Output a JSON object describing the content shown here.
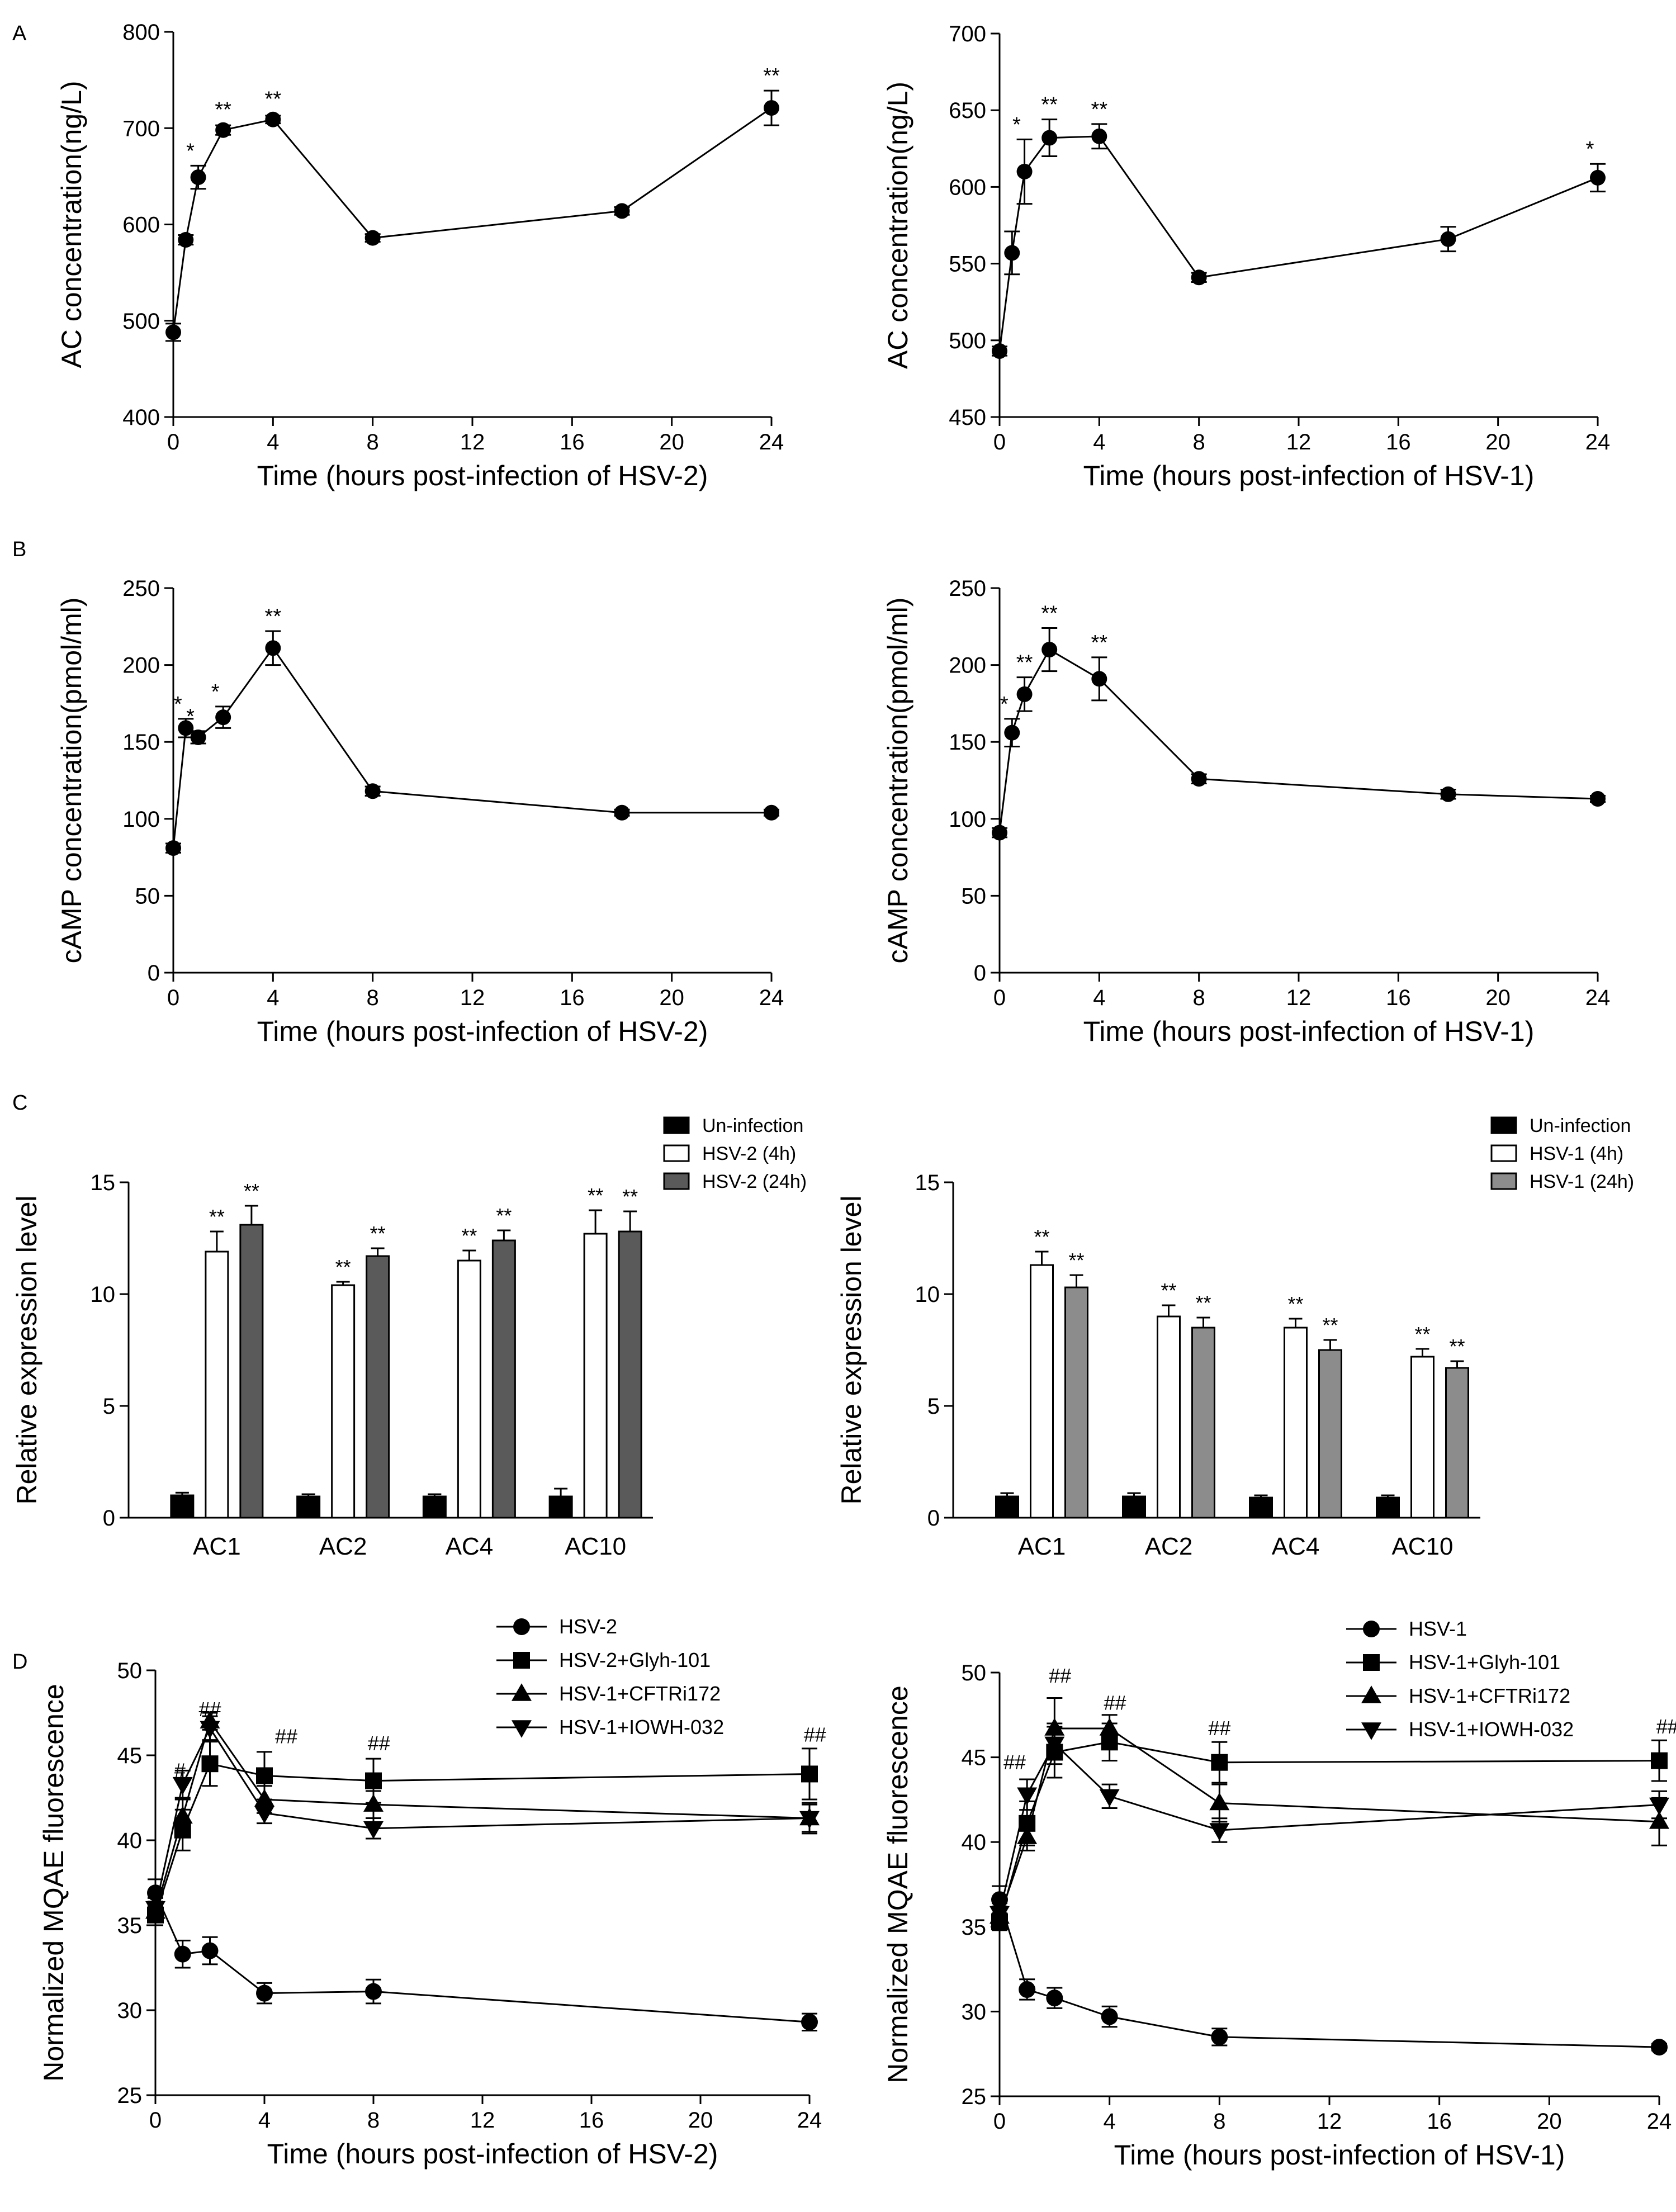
{
  "panel_letters": [
    "A",
    "B",
    "C",
    "D"
  ],
  "chart_data": [
    {
      "id": "A-left",
      "type": "line",
      "panel": "A",
      "xlabel": "Time (hours post-infection of HSV-2)",
      "ylabel": "AC concentration(ng/L)",
      "xlim": [
        0,
        24
      ],
      "xticks": [
        0,
        4,
        8,
        12,
        16,
        20,
        24
      ],
      "ylim": [
        400,
        800
      ],
      "yticks": [
        400,
        500,
        600,
        700,
        800
      ],
      "series": [
        {
          "name": "HSV-2",
          "marker": "circle",
          "x": [
            0,
            0.5,
            1,
            2,
            4,
            8,
            18,
            24
          ],
          "y": [
            488,
            584,
            649,
            698,
            709,
            586,
            614,
            721
          ],
          "err": [
            9,
            5,
            12,
            5,
            4,
            4,
            4,
            18
          ],
          "sig": [
            "",
            "",
            "*",
            "**",
            "**",
            "",
            "",
            "**"
          ]
        }
      ]
    },
    {
      "id": "A-right",
      "type": "line",
      "panel": "A",
      "xlabel": "Time (hours post-infection of HSV-1)",
      "ylabel": "AC concentration(ng/L)",
      "xlim": [
        0,
        24
      ],
      "xticks": [
        0,
        4,
        8,
        12,
        16,
        20,
        24
      ],
      "ylim": [
        450,
        700
      ],
      "yticks": [
        450,
        500,
        550,
        600,
        650,
        700
      ],
      "series": [
        {
          "name": "HSV-1",
          "marker": "circle",
          "x": [
            0,
            0.5,
            1,
            2,
            4,
            8,
            18,
            24
          ],
          "y": [
            493,
            557,
            610,
            632,
            633,
            541,
            566,
            606
          ],
          "err": [
            3,
            14,
            21,
            12,
            8,
            3,
            8,
            9
          ],
          "sig": [
            "",
            "",
            "*",
            "**",
            "**",
            "",
            "",
            "*"
          ]
        }
      ]
    },
    {
      "id": "B-left",
      "type": "line",
      "panel": "B",
      "xlabel": "Time (hours post-infection of HSV-2)",
      "ylabel": "cAMP concentration(pmol/ml)",
      "xlim": [
        0,
        24
      ],
      "xticks": [
        0,
        4,
        8,
        12,
        16,
        20,
        24
      ],
      "ylim": [
        0,
        250
      ],
      "yticks": [
        0,
        50,
        100,
        150,
        200,
        250
      ],
      "series": [
        {
          "name": "HSV-2",
          "marker": "circle",
          "x": [
            0,
            0.5,
            1,
            2,
            4,
            8,
            18,
            24
          ],
          "y": [
            81,
            159,
            153,
            166,
            211,
            118,
            104,
            104
          ],
          "err": [
            3,
            6,
            4,
            7,
            11,
            3,
            2,
            2
          ],
          "sig": [
            "",
            "*",
            "*",
            "*",
            "**",
            "",
            "",
            ""
          ]
        }
      ]
    },
    {
      "id": "B-right",
      "type": "line",
      "panel": "B",
      "xlabel": "Time (hours post-infection of HSV-1)",
      "ylabel": "cAMP concentration(pmol/ml)",
      "xlim": [
        0,
        24
      ],
      "xticks": [
        0,
        4,
        8,
        12,
        16,
        20,
        24
      ],
      "ylim": [
        0,
        250
      ],
      "yticks": [
        0,
        50,
        100,
        150,
        200,
        250
      ],
      "series": [
        {
          "name": "HSV-1",
          "marker": "circle",
          "x": [
            0,
            0.5,
            1,
            2,
            4,
            8,
            18,
            24
          ],
          "y": [
            91,
            156,
            181,
            210,
            191,
            126,
            116,
            113
          ],
          "err": [
            3,
            9,
            11,
            14,
            14,
            3,
            3,
            2
          ],
          "sig": [
            "",
            "*",
            "**",
            "**",
            "**",
            "",
            "",
            ""
          ]
        }
      ]
    },
    {
      "id": "C-left",
      "type": "bar",
      "panel": "C",
      "ylabel": "Relative expression level",
      "categories": [
        "AC1",
        "AC2",
        "AC4",
        "AC10"
      ],
      "ylim": [
        0,
        15
      ],
      "yticks": [
        0,
        5,
        10,
        15
      ],
      "series": [
        {
          "name": "Un-infection",
          "color": "#000000",
          "values": [
            1.0,
            0.95,
            0.95,
            0.95
          ],
          "err": [
            0.12,
            0.1,
            0.1,
            0.35
          ],
          "sig": [
            "",
            "",
            "",
            ""
          ]
        },
        {
          "name": "HSV-2 (4h)",
          "color": "#ffffff",
          "values": [
            11.9,
            10.4,
            11.5,
            12.7
          ],
          "err": [
            0.9,
            0.15,
            0.45,
            1.05
          ],
          "sig": [
            "**",
            "**",
            "**",
            "**"
          ]
        },
        {
          "name": "HSV-2 (24h)",
          "color": "#5a5a5a",
          "values": [
            13.1,
            11.7,
            12.4,
            12.8
          ],
          "err": [
            0.85,
            0.35,
            0.45,
            0.9
          ],
          "sig": [
            "**",
            "**",
            "**",
            "**"
          ]
        }
      ],
      "legend": "top-right"
    },
    {
      "id": "C-right",
      "type": "bar",
      "panel": "C",
      "ylabel": "Relative expression level",
      "categories": [
        "AC1",
        "AC2",
        "AC4",
        "AC10"
      ],
      "ylim": [
        0,
        15
      ],
      "yticks": [
        0,
        5,
        10,
        15
      ],
      "series": [
        {
          "name": "Un-infection",
          "color": "#000000",
          "values": [
            0.95,
            0.95,
            0.9,
            0.9
          ],
          "err": [
            0.15,
            0.15,
            0.1,
            0.1
          ],
          "sig": [
            "",
            "",
            "",
            ""
          ]
        },
        {
          "name": "HSV-1 (4h)",
          "color": "#ffffff",
          "values": [
            11.3,
            9.0,
            8.5,
            7.2
          ],
          "err": [
            0.6,
            0.5,
            0.4,
            0.35
          ],
          "sig": [
            "**",
            "**",
            "**",
            "**"
          ]
        },
        {
          "name": "HSV-1 (24h)",
          "color": "#8c8c8c",
          "values": [
            10.3,
            8.5,
            7.5,
            6.7
          ],
          "err": [
            0.55,
            0.45,
            0.45,
            0.3
          ],
          "sig": [
            "**",
            "**",
            "**",
            "**"
          ]
        }
      ],
      "legend": "top-right"
    },
    {
      "id": "D-left",
      "type": "line",
      "panel": "D",
      "xlabel": "Time (hours post-infection of HSV-2)",
      "ylabel": "Normalized MQAE fluorescence",
      "xlim": [
        0,
        24
      ],
      "xticks": [
        0,
        4,
        8,
        12,
        16,
        20,
        24
      ],
      "ylim": [
        25,
        50
      ],
      "yticks": [
        25,
        30,
        35,
        40,
        45,
        50
      ],
      "annotations": [
        {
          "x": 0.9,
          "y": 43.7,
          "text": "#"
        },
        {
          "x": 2.0,
          "y": 47.3,
          "text": "##"
        },
        {
          "x": 4.8,
          "y": 45.7,
          "text": "##"
        },
        {
          "x": 8.2,
          "y": 45.3,
          "text": "##"
        },
        {
          "x": 24.2,
          "y": 45.8,
          "text": "##"
        }
      ],
      "series": [
        {
          "name": "HSV-2",
          "marker": "circle",
          "x": [
            0,
            1,
            2,
            4,
            8,
            24
          ],
          "y": [
            36.9,
            33.3,
            33.5,
            31.0,
            31.1,
            29.3
          ],
          "err": [
            0.8,
            0.8,
            0.8,
            0.6,
            0.7,
            0.5
          ]
        },
        {
          "name": "HSV-2+Glyh-101",
          "marker": "square",
          "x": [
            0,
            1,
            2,
            4,
            8,
            24
          ],
          "y": [
            35.6,
            40.6,
            44.5,
            43.8,
            43.5,
            43.9
          ],
          "err": [
            0.6,
            1.2,
            1.3,
            1.4,
            1.3,
            1.5
          ]
        },
        {
          "name": "HSV-1+CFTRi172",
          "marker": "triangle",
          "x": [
            0,
            1,
            2,
            4,
            8,
            24
          ],
          "y": [
            35.8,
            41.4,
            47.0,
            42.4,
            42.1,
            41.3
          ],
          "err": [
            0.6,
            1.0,
            0.5,
            0.8,
            0.8,
            0.8
          ]
        },
        {
          "name": "HSV-1+IOWH-032",
          "marker": "triangle-down",
          "x": [
            0,
            1,
            2,
            4,
            8,
            24
          ],
          "y": [
            36.0,
            43.3,
            46.6,
            41.6,
            40.7,
            41.3
          ],
          "err": [
            0.6,
            0.8,
            0.7,
            0.6,
            0.6,
            0.9
          ]
        }
      ],
      "legend": "top-right"
    },
    {
      "id": "D-right",
      "type": "line",
      "panel": "D",
      "xlabel": "Time (hours post-infection of HSV-1)",
      "ylabel": "Normalized MQAE fluorescence",
      "xlim": [
        0,
        24
      ],
      "xticks": [
        0,
        4,
        8,
        12,
        16,
        20,
        24
      ],
      "ylim": [
        25,
        50
      ],
      "yticks": [
        25,
        30,
        35,
        40,
        45,
        50
      ],
      "annotations": [
        {
          "x": 0.55,
          "y": 44.3,
          "text": "##"
        },
        {
          "x": 2.2,
          "y": 49.4,
          "text": "##"
        },
        {
          "x": 4.2,
          "y": 47.8,
          "text": "##"
        },
        {
          "x": 8.0,
          "y": 46.3,
          "text": "##"
        },
        {
          "x": 24.3,
          "y": 46.4,
          "text": "##"
        }
      ],
      "series": [
        {
          "name": "HSV-1",
          "marker": "circle",
          "x": [
            0,
            1,
            2,
            4,
            8,
            24
          ],
          "y": [
            36.6,
            31.3,
            30.8,
            29.7,
            28.5,
            27.9
          ],
          "err": [
            0.8,
            0.6,
            0.6,
            0.6,
            0.5,
            0.2
          ]
        },
        {
          "name": "HSV-1+Glyh-101",
          "marker": "square",
          "x": [
            0,
            1,
            2,
            4,
            8,
            24
          ],
          "y": [
            35.3,
            41.1,
            45.3,
            45.9,
            44.7,
            44.8
          ],
          "err": [
            0.5,
            1.3,
            1.5,
            1.1,
            1.2,
            1.2
          ]
        },
        {
          "name": "HSV-1+CFTRi172",
          "marker": "triangle",
          "x": [
            0,
            1,
            2,
            4,
            8,
            24
          ],
          "y": [
            35.6,
            40.3,
            46.7,
            46.7,
            42.3,
            41.2
          ],
          "err": [
            0.6,
            0.8,
            1.8,
            0.8,
            1.1,
            1.4
          ]
        },
        {
          "name": "HSV-1+IOWH-032",
          "marker": "triangle-down",
          "x": [
            0,
            1,
            2,
            4,
            8,
            24
          ],
          "y": [
            35.8,
            42.8,
            45.8,
            42.7,
            40.7,
            42.2
          ],
          "err": [
            0.6,
            0.9,
            1.2,
            0.7,
            0.7,
            0.8
          ]
        }
      ],
      "legend": "top-right"
    }
  ]
}
